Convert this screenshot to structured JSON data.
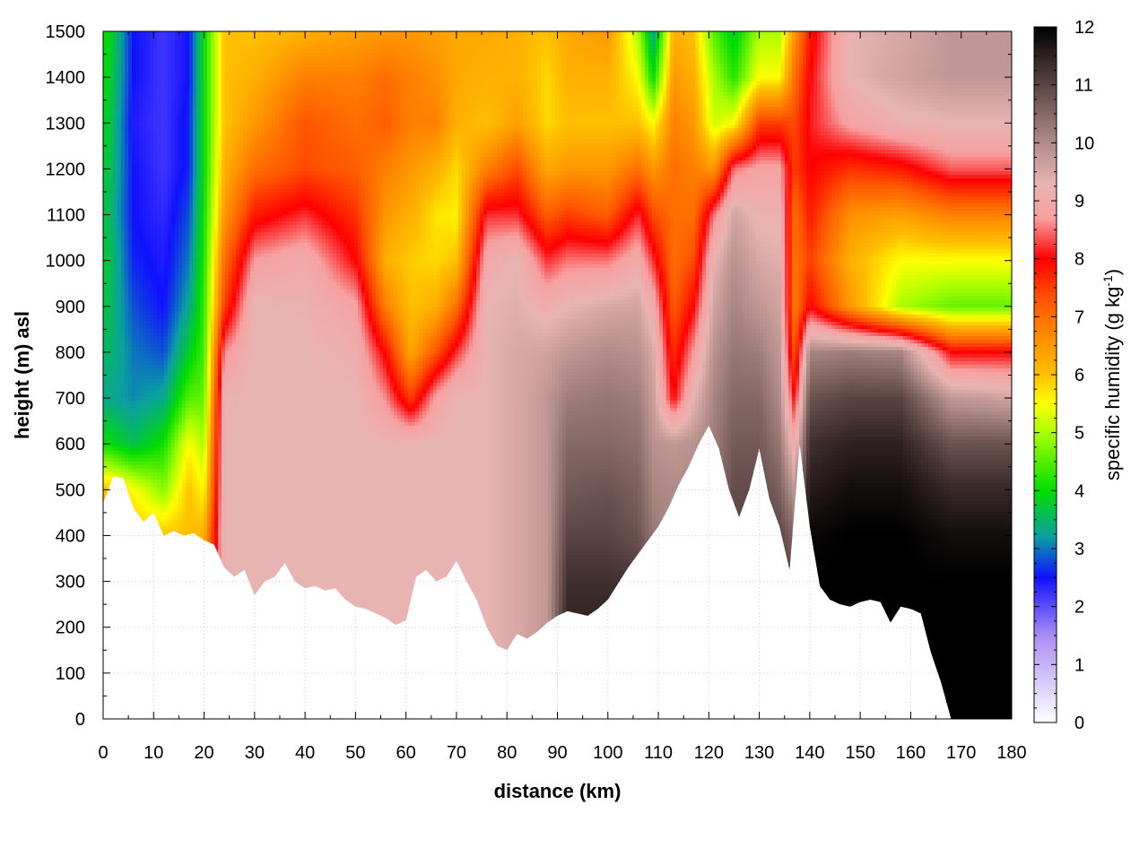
{
  "chart_data": {
    "type": "heatmap",
    "xlabel": "distance (km)",
    "ylabel": "height (m) asl",
    "xlim": [
      0,
      180
    ],
    "ylim": [
      0,
      1500
    ],
    "x_ticks": [
      0,
      10,
      20,
      30,
      40,
      50,
      60,
      70,
      80,
      90,
      100,
      110,
      120,
      130,
      140,
      150,
      160,
      170,
      180
    ],
    "y_ticks": [
      0,
      100,
      200,
      300,
      400,
      500,
      600,
      700,
      800,
      900,
      1000,
      1100,
      1200,
      1300,
      1400,
      1500
    ],
    "grid": true,
    "colorbar": {
      "label_pre": "specific humidity (g kg",
      "label_sup": "-1",
      "label_post": ")",
      "range": [
        0,
        12
      ],
      "ticks": [
        0,
        1,
        2,
        3,
        4,
        5,
        6,
        7,
        8,
        9,
        10,
        11,
        12
      ],
      "colors": [
        {
          "value": 0,
          "color": "#ffffff"
        },
        {
          "value": 1.5,
          "color": "#a98ef5"
        },
        {
          "value": 2.5,
          "color": "#1010ff"
        },
        {
          "value": 3.2,
          "color": "#0aa0a0"
        },
        {
          "value": 4,
          "color": "#00dd00"
        },
        {
          "value": 5,
          "color": "#aaff00"
        },
        {
          "value": 5.5,
          "color": "#ffff00"
        },
        {
          "value": 6,
          "color": "#ffc000"
        },
        {
          "value": 6.7,
          "color": "#ff8800"
        },
        {
          "value": 7.3,
          "color": "#ff5500"
        },
        {
          "value": 8,
          "color": "#ff0000"
        },
        {
          "value": 8.7,
          "color": "#f7a0a0"
        },
        {
          "value": 9.3,
          "color": "#e8b4b2"
        },
        {
          "value": 10,
          "color": "#b08c88"
        },
        {
          "value": 11,
          "color": "#5a4442"
        },
        {
          "value": 12,
          "color": "#000000"
        }
      ]
    },
    "terrain_profile": {
      "distance_km": [
        0,
        2,
        4,
        6,
        8,
        10,
        12,
        14,
        16,
        18,
        20,
        22,
        24,
        26,
        28,
        30,
        32,
        34,
        36,
        38,
        40,
        42,
        44,
        46,
        48,
        50,
        52,
        54,
        56,
        58,
        60,
        62,
        64,
        66,
        68,
        70,
        72,
        74,
        76,
        78,
        80,
        82,
        84,
        86,
        88,
        90,
        92,
        94,
        96,
        98,
        100,
        102,
        104,
        106,
        108,
        110,
        112,
        114,
        116,
        118,
        120,
        122,
        124,
        126,
        128,
        130,
        132,
        134,
        136,
        138,
        140,
        142,
        144,
        146,
        148,
        150,
        152,
        154,
        156,
        158,
        160,
        162,
        164,
        166,
        168
      ],
      "height_m": [
        470,
        530,
        525,
        460,
        430,
        450,
        400,
        410,
        400,
        405,
        390,
        380,
        330,
        310,
        325,
        270,
        300,
        310,
        340,
        300,
        285,
        290,
        280,
        285,
        260,
        245,
        240,
        230,
        220,
        205,
        215,
        310,
        325,
        300,
        310,
        345,
        300,
        260,
        200,
        160,
        150,
        185,
        175,
        190,
        210,
        225,
        235,
        230,
        225,
        240,
        260,
        295,
        330,
        360,
        390,
        420,
        460,
        510,
        550,
        600,
        640,
        590,
        500,
        440,
        500,
        590,
        480,
        420,
        325,
        600,
        420,
        290,
        260,
        250,
        245,
        255,
        260,
        255,
        210,
        245,
        240,
        230,
        145,
        80,
        0
      ]
    },
    "column_profiles": {
      "note_units": "specific humidity in g kg-1 at heights 0,100,...,1500 m",
      "heights_m": [
        0,
        100,
        200,
        300,
        400,
        500,
        600,
        700,
        800,
        900,
        1000,
        1100,
        1200,
        1300,
        1400,
        1500
      ],
      "columns": [
        {
          "distance_km": 1,
          "values": [
            6,
            6,
            6,
            6,
            6,
            6,
            4,
            3.3,
            3.5,
            3.6,
            3.7,
            3.6,
            3.7,
            3.8,
            3.9,
            4
          ]
        },
        {
          "distance_km": 6,
          "values": [
            6,
            6,
            6,
            6,
            6,
            5.5,
            3.6,
            3.1,
            3.0,
            2.8,
            2.6,
            2.5,
            2.5,
            2.4,
            2.5,
            2.5
          ]
        },
        {
          "distance_km": 12,
          "values": [
            6,
            6,
            6,
            6,
            6,
            4.8,
            4.1,
            3.3,
            2.8,
            2.5,
            2.4,
            2.3,
            2.2,
            2.2,
            2.2,
            2.2
          ]
        },
        {
          "distance_km": 17,
          "values": [
            6,
            6,
            6,
            6,
            6,
            6,
            5.5,
            4.5,
            3.8,
            3.3,
            3.0,
            2.8,
            2.6,
            2.6,
            2.5,
            2.5
          ]
        },
        {
          "distance_km": 20,
          "values": [
            6,
            6,
            6,
            6,
            6.2,
            5.5,
            5,
            4.6,
            4.4,
            4.3,
            4.2,
            4.1,
            4,
            4,
            4,
            4
          ]
        },
        {
          "distance_km": 24,
          "values": [
            9.3,
            9.3,
            9.3,
            9.3,
            9.3,
            9.3,
            9.3,
            9.2,
            8.6,
            7.5,
            7,
            6.5,
            6.2,
            6,
            6,
            6
          ]
        },
        {
          "distance_km": 30,
          "values": [
            9.3,
            9.3,
            9.3,
            9.3,
            9.3,
            9.3,
            9.3,
            9.3,
            9.3,
            9.3,
            8.7,
            7.8,
            7,
            6.5,
            6.2,
            6
          ]
        },
        {
          "distance_km": 40,
          "values": [
            9.3,
            9.3,
            9.3,
            9.3,
            9.3,
            9.3,
            9.3,
            9.3,
            9.3,
            9.2,
            9.0,
            8.2,
            7.4,
            7.3,
            6.8,
            6.2
          ]
        },
        {
          "distance_km": 50,
          "values": [
            9.3,
            9.3,
            9.3,
            9.3,
            9.3,
            9.3,
            9.3,
            9.3,
            9.1,
            8.8,
            8.0,
            7.6,
            7.2,
            7.0,
            6.8,
            6.4
          ]
        },
        {
          "distance_km": 56,
          "values": [
            9.3,
            9.3,
            9.3,
            9.3,
            9.3,
            9.3,
            9.3,
            8.6,
            7.9,
            6.8,
            6.2,
            6.5,
            6.8,
            7.2,
            7.0,
            6.5
          ]
        },
        {
          "distance_km": 61,
          "values": [
            9.3,
            9.3,
            9.3,
            9.3,
            9.3,
            9.3,
            9.3,
            7.5,
            6.3,
            6.0,
            5.9,
            6.2,
            6.5,
            6.8,
            6.8,
            6.5
          ]
        },
        {
          "distance_km": 66,
          "values": [
            9.3,
            9.3,
            9.3,
            9.3,
            9.3,
            9.3,
            9.3,
            8.8,
            7.3,
            6.2,
            5.8,
            5.7,
            6.2,
            6.8,
            6.6,
            6.4
          ]
        },
        {
          "distance_km": 70,
          "values": [
            9.3,
            9.3,
            9.3,
            9.3,
            9.3,
            9.3,
            9.3,
            9.3,
            8.2,
            7.0,
            6.0,
            5.6,
            5.8,
            6.2,
            6.3,
            6.3
          ]
        },
        {
          "distance_km": 76,
          "values": [
            9.3,
            9.3,
            9.3,
            9.3,
            9.3,
            9.3,
            9.3,
            9.3,
            9.3,
            9.3,
            9.0,
            8.2,
            6.8,
            6.0,
            6.2,
            6.3
          ]
        },
        {
          "distance_km": 82,
          "values": [
            9.5,
            9.5,
            9.5,
            9.5,
            9.5,
            9.5,
            9.5,
            9.5,
            9.5,
            9.4,
            9.3,
            8.2,
            7.4,
            6.4,
            6.2,
            6.2
          ]
        },
        {
          "distance_km": 88,
          "values": [
            9.8,
            9.8,
            9.8,
            9.8,
            9.8,
            9.8,
            9.8,
            9.8,
            9.6,
            9.1,
            8.2,
            7.2,
            6.3,
            5.8,
            5.8,
            6.0
          ]
        },
        {
          "distance_km": 92,
          "values": [
            11.5,
            11.5,
            11.5,
            11.3,
            11.0,
            10.7,
            10.5,
            10.2,
            9.8,
            9.3,
            8.5,
            7.5,
            6.5,
            6.0,
            6.2,
            6.3
          ]
        },
        {
          "distance_km": 100,
          "values": [
            11.5,
            11.5,
            11.5,
            11.3,
            11.0,
            10.8,
            10.5,
            10.3,
            10.0,
            9.5,
            8.5,
            7.2,
            6.5,
            6.0,
            6.2,
            6.5
          ]
        },
        {
          "distance_km": 106,
          "values": [
            11.5,
            11.5,
            11.5,
            11.2,
            10.8,
            10.6,
            10.4,
            10.2,
            9.9,
            9.6,
            9.0,
            8.2,
            7.0,
            6.0,
            5.5,
            5.0
          ]
        },
        {
          "distance_km": 109,
          "values": [
            10.5,
            10.5,
            10.5,
            10.5,
            10.3,
            10.1,
            9.9,
            9.7,
            9.5,
            9.0,
            8.2,
            7.4,
            6.5,
            5.5,
            4.0,
            3.2
          ]
        },
        {
          "distance_km": 113,
          "values": [
            10.0,
            10.0,
            10.0,
            10.0,
            10.0,
            10.0,
            9.8,
            8.0,
            7.6,
            7.2,
            7.0,
            7.0,
            7.0,
            6.8,
            6.5,
            6.2
          ]
        },
        {
          "distance_km": 117,
          "values": [
            10.0,
            10.0,
            10.0,
            10.0,
            10.0,
            10.0,
            9.9,
            9.3,
            8.7,
            8.0,
            7.4,
            7.0,
            6.8,
            6.5,
            6.2,
            6.0
          ]
        },
        {
          "distance_km": 121,
          "values": [
            10.2,
            10.2,
            10.2,
            10.2,
            10.2,
            10.2,
            10.2,
            10.1,
            9.9,
            9.6,
            9.3,
            8.5,
            6.5,
            5.2,
            5.0,
            4.5
          ]
        },
        {
          "distance_km": 125,
          "values": [
            11.0,
            11.0,
            11.0,
            11.0,
            11.0,
            10.9,
            10.7,
            10.5,
            10.3,
            10.1,
            9.9,
            9.6,
            8.5,
            5.5,
            4.2,
            3.8
          ]
        },
        {
          "distance_km": 130,
          "values": [
            11.0,
            11.0,
            11.0,
            11.0,
            11.0,
            10.9,
            10.7,
            10.5,
            10.2,
            9.8,
            9.5,
            9.2,
            8.8,
            7.5,
            5.5,
            5.0
          ]
        },
        {
          "distance_km": 134,
          "values": [
            11.0,
            11.0,
            11.0,
            11.0,
            11.0,
            10.6,
            10.3,
            10.0,
            9.8,
            9.6,
            9.4,
            9.2,
            8.8,
            7.5,
            5.5,
            5.0
          ]
        },
        {
          "distance_km": 137,
          "values": [
            11.5,
            11.5,
            11.5,
            11.2,
            10.5,
            9.8,
            9.0,
            8.0,
            7.2,
            6.8,
            6.9,
            7.0,
            7.5,
            7.4,
            7.0,
            6.5
          ]
        },
        {
          "distance_km": 140,
          "values": [
            12.0,
            12.0,
            12.0,
            12.0,
            11.9,
            11.6,
            11.3,
            10.8,
            10.1,
            8.0,
            7.5,
            7.8,
            8.0,
            8.1,
            8.0,
            7.8
          ]
        },
        {
          "distance_km": 148,
          "values": [
            12.0,
            12.0,
            12.0,
            12.0,
            12.0,
            11.8,
            11.5,
            11.0,
            10.2,
            6.5,
            6.2,
            6.6,
            7.6,
            8.8,
            9.3,
            9.3
          ]
        },
        {
          "distance_km": 158,
          "values": [
            12.0,
            12.0,
            12.0,
            12.0,
            12.0,
            11.8,
            11.5,
            11.0,
            10.1,
            5.0,
            5.5,
            6.4,
            7.8,
            9.2,
            9.6,
            9.5
          ]
        },
        {
          "distance_km": 168,
          "values": [
            12.0,
            12.0,
            12.0,
            12.0,
            11.8,
            11.4,
            10.8,
            9.8,
            8.0,
            4.6,
            5.5,
            6.8,
            8.4,
            9.3,
            9.8,
            9.8
          ]
        },
        {
          "distance_km": 180,
          "values": [
            12.0,
            12.0,
            12.0,
            12.0,
            11.8,
            11.4,
            10.8,
            9.6,
            8.0,
            4.6,
            5.5,
            6.8,
            8.4,
            9.3,
            9.8,
            9.8
          ]
        }
      ]
    }
  }
}
